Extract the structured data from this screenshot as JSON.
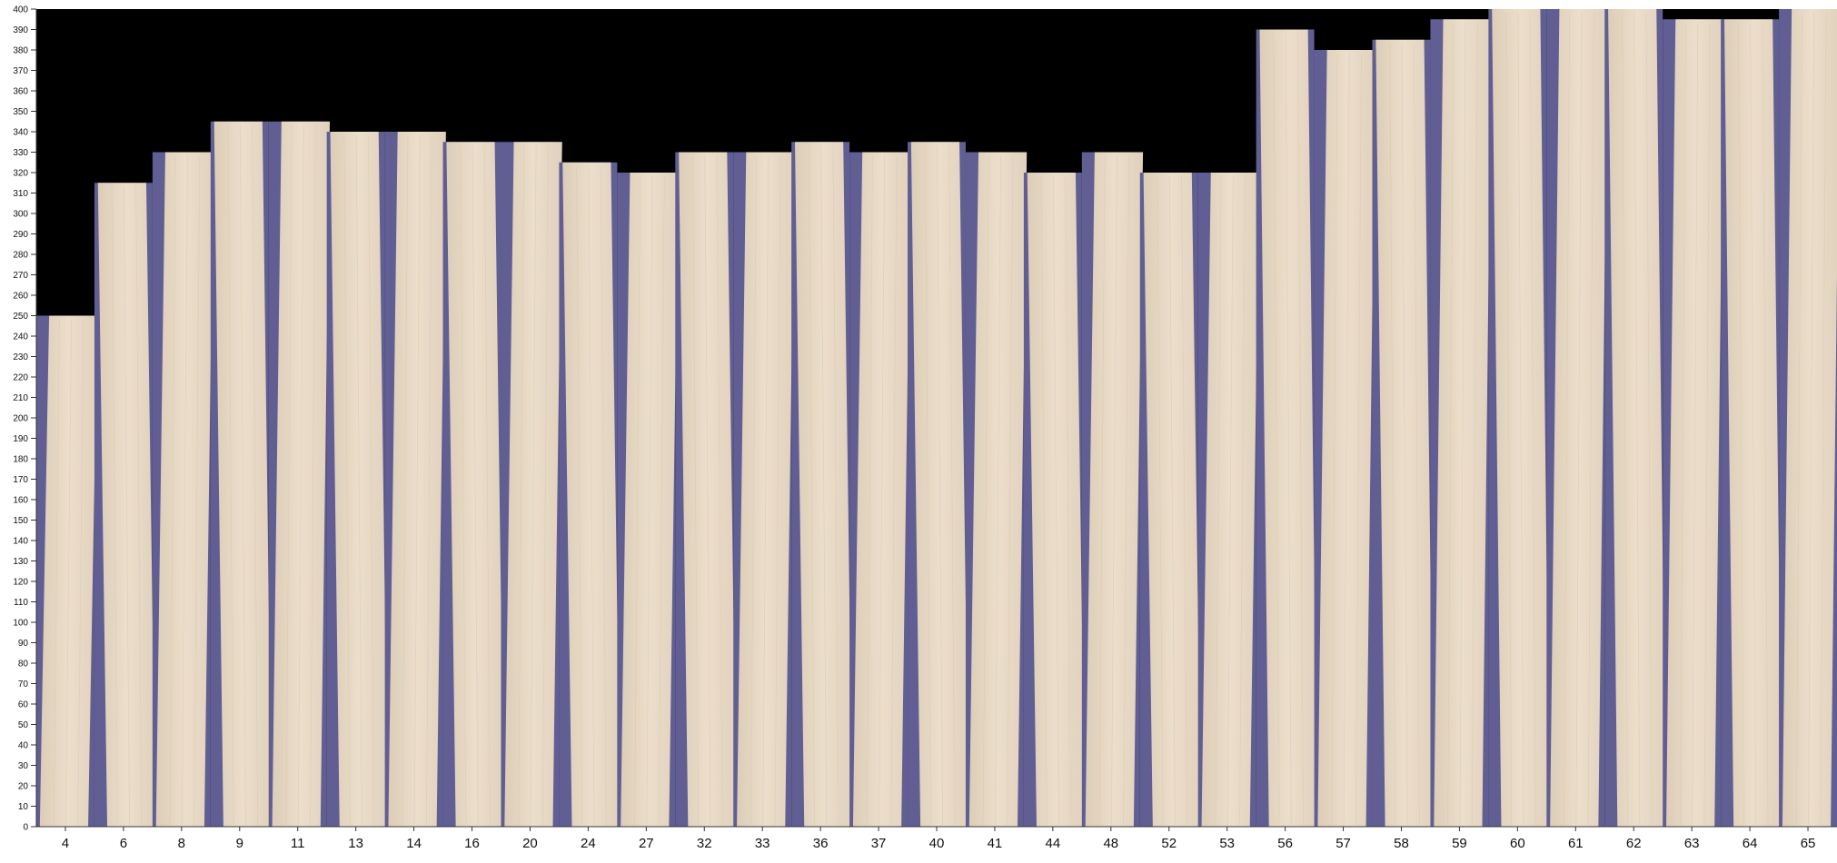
{
  "colors": {
    "background": "#000000",
    "veneer": "#e6d8c5",
    "veneer_grain": "#d3c29c",
    "gap": "#605e93",
    "axis": "#333333",
    "page": "#ffffff"
  },
  "chart_data": {
    "type": "bar",
    "title": "",
    "xlabel": "",
    "ylabel": "",
    "ylim": [
      0,
      400
    ],
    "y_ticks_step": 10,
    "grid": false,
    "categories": [
      "4",
      "6",
      "8",
      "9",
      "11",
      "13",
      "14",
      "16",
      "20",
      "24",
      "27",
      "32",
      "33",
      "36",
      "37",
      "40",
      "41",
      "44",
      "48",
      "52",
      "53",
      "56",
      "57",
      "58",
      "59",
      "60",
      "61",
      "62",
      "63",
      "64",
      "65"
    ],
    "values": [
      250,
      315,
      330,
      345,
      345,
      340,
      340,
      335,
      335,
      325,
      320,
      330,
      330,
      335,
      330,
      335,
      330,
      320,
      330,
      320,
      320,
      390,
      380,
      385,
      395,
      400,
      400,
      400,
      395,
      395,
      400
    ]
  }
}
